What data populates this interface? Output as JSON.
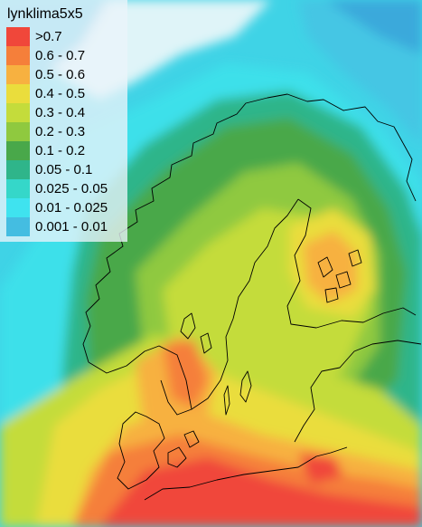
{
  "legend": {
    "title": "lynklima5x5",
    "items": [
      {
        "label": ">0.7",
        "color": "#f0473a"
      },
      {
        "label": "0.6 - 0.7",
        "color": "#f57f3a"
      },
      {
        "label": "0.5 - 0.6",
        "color": "#f7b140"
      },
      {
        "label": "0.4 - 0.5",
        "color": "#eadd3c"
      },
      {
        "label": "0.3 - 0.4",
        "color": "#c4dc3b"
      },
      {
        "label": "0.2 - 0.3",
        "color": "#8fc93f"
      },
      {
        "label": "0.1 - 0.2",
        "color": "#49a84a"
      },
      {
        "label": "0.05 - 0.1",
        "color": "#2fb58a"
      },
      {
        "label": "0.025 - 0.05",
        "color": "#35d7c9"
      },
      {
        "label": "0.01 - 0.025",
        "color": "#3fe3ef"
      },
      {
        "label": "0.001 - 0.01",
        "color": "#44bde1"
      }
    ]
  }
}
